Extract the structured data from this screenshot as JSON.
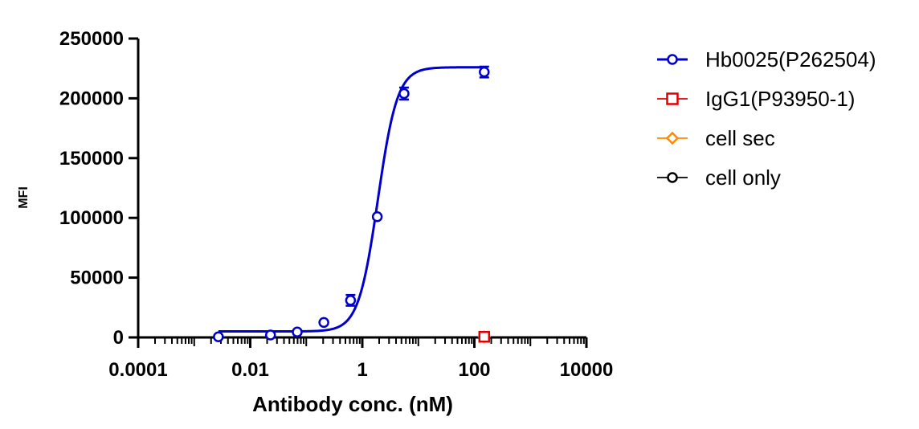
{
  "chart_data": {
    "type": "scatter",
    "xlabel": "Antibody conc. (nM)",
    "ylabel": "MFI",
    "x_scale": "log",
    "xlim": [
      0.0001,
      10000
    ],
    "ylim": [
      0,
      250000
    ],
    "x_ticks": [
      0.0001,
      0.01,
      1,
      100,
      10000
    ],
    "x_tick_labels": [
      "0.0001",
      "0.01",
      "1",
      "100",
      "10000"
    ],
    "y_ticks": [
      0,
      50000,
      100000,
      150000,
      200000,
      250000
    ],
    "y_tick_labels": [
      "0",
      "50000",
      "100000",
      "150000",
      "200000",
      "250000"
    ],
    "grid": false,
    "legend_position": "right",
    "series": [
      {
        "name": "Hb0025(P262504)",
        "color": "#0000cc",
        "marker": "circle",
        "fit": "sigmoidal",
        "fit_params": {
          "bottom": 5000,
          "top": 226000,
          "ec50": 1.9,
          "hill": 2.5
        },
        "x": [
          0.0027,
          0.023,
          0.069,
          0.206,
          0.617,
          1.85,
          5.56,
          150
        ],
        "y": [
          500,
          2000,
          4500,
          12500,
          31000,
          101000,
          204000,
          222000
        ],
        "error": [
          0,
          0,
          0,
          0,
          4500,
          0,
          5000,
          4500
        ]
      },
      {
        "name": "IgG1(P93950-1)",
        "color": "#e00000",
        "marker": "square",
        "x": [
          150
        ],
        "y": [
          500
        ]
      },
      {
        "name": "cell sec",
        "color": "#ff8800",
        "marker": "diamond",
        "x": [
          150
        ],
        "y": [
          500
        ]
      },
      {
        "name": "cell only",
        "color": "#000000",
        "marker": "circle",
        "x": [
          150
        ],
        "y": [
          500
        ]
      }
    ]
  }
}
